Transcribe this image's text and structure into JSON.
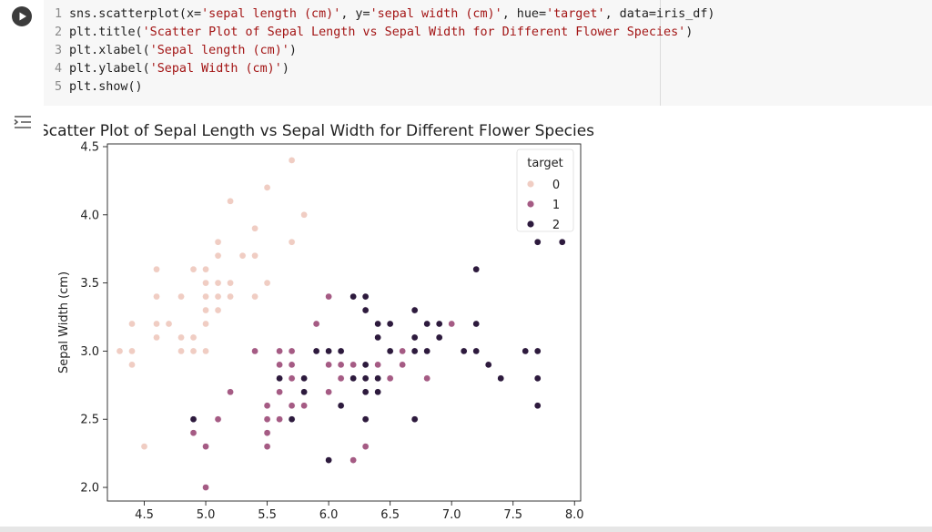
{
  "code_cell": {
    "lines": [
      {
        "num": "1",
        "parts": [
          {
            "t": "sns.scatterplot(x=",
            "c": "fn"
          },
          {
            "t": "'sepal length (cm)'",
            "c": "str"
          },
          {
            "t": ", y=",
            "c": "fn"
          },
          {
            "t": "'sepal width (cm)'",
            "c": "str"
          },
          {
            "t": ", hue=",
            "c": "fn"
          },
          {
            "t": "'target'",
            "c": "str"
          },
          {
            "t": ", data=iris_df)",
            "c": "fn"
          }
        ]
      },
      {
        "num": "2",
        "parts": [
          {
            "t": "plt.title(",
            "c": "fn"
          },
          {
            "t": "'Scatter Plot of Sepal Length vs Sepal Width for Different Flower Species'",
            "c": "str"
          },
          {
            "t": ")",
            "c": "fn"
          }
        ]
      },
      {
        "num": "3",
        "parts": [
          {
            "t": "plt.xlabel(",
            "c": "fn"
          },
          {
            "t": "'Sepal length (cm)'",
            "c": "str"
          },
          {
            "t": ")",
            "c": "fn"
          }
        ]
      },
      {
        "num": "4",
        "parts": [
          {
            "t": "plt.ylabel(",
            "c": "fn"
          },
          {
            "t": "'Sepal Width (cm)'",
            "c": "str"
          },
          {
            "t": ")",
            "c": "fn"
          }
        ]
      },
      {
        "num": "5",
        "parts": [
          {
            "t": "plt.show()",
            "c": "fn"
          }
        ]
      }
    ]
  },
  "icons": {
    "run": "play-icon",
    "output": "output-toggle-icon"
  },
  "chart_data": {
    "type": "scatter",
    "title": "Scatter Plot of Sepal Length vs Sepal Width for Different Flower Species",
    "ylabel": "Sepal Width (cm)",
    "xlim": [
      4.2,
      8.05
    ],
    "ylim": [
      1.9,
      4.52
    ],
    "xticks": [
      "4.5",
      "5.0",
      "5.5",
      "6.0",
      "6.5",
      "7.0",
      "7.5",
      "8.0"
    ],
    "yticks": [
      "2.0",
      "2.5",
      "3.0",
      "3.5",
      "4.0",
      "4.5"
    ],
    "legend": {
      "title": "target",
      "placement": "upper-right",
      "entries": [
        "0",
        "1",
        "2"
      ]
    },
    "colors": {
      "0": "#f0cdc3",
      "1": "#a55b84",
      "2": "#2d1a3d"
    },
    "series": [
      {
        "name": "0",
        "x": [
          5.1,
          4.9,
          4.7,
          4.6,
          5.0,
          5.4,
          4.6,
          5.0,
          4.4,
          4.9,
          5.4,
          4.8,
          4.8,
          4.3,
          5.8,
          5.7,
          5.4,
          5.1,
          5.7,
          5.1,
          5.4,
          5.1,
          4.6,
          5.1,
          4.8,
          5.0,
          5.0,
          5.2,
          5.2,
          4.7,
          4.8,
          5.4,
          5.2,
          5.5,
          4.9,
          5.0,
          5.5,
          4.9,
          4.4,
          5.1,
          5.0,
          4.5,
          4.4,
          5.0,
          5.1,
          4.8,
          5.1,
          4.6,
          5.3,
          5.0
        ],
        "y": [
          3.5,
          3.0,
          3.2,
          3.1,
          3.6,
          3.9,
          3.4,
          3.4,
          2.9,
          3.1,
          3.7,
          3.4,
          3.0,
          3.0,
          4.0,
          4.4,
          3.9,
          3.5,
          3.8,
          3.8,
          3.4,
          3.7,
          3.6,
          3.3,
          3.4,
          3.0,
          3.4,
          3.5,
          3.4,
          3.2,
          3.1,
          3.4,
          4.1,
          4.2,
          3.1,
          3.2,
          3.5,
          3.6,
          3.0,
          3.4,
          3.5,
          2.3,
          3.2,
          3.5,
          3.8,
          3.0,
          3.8,
          3.2,
          3.7,
          3.3
        ]
      },
      {
        "name": "1",
        "x": [
          7.0,
          6.4,
          6.9,
          5.5,
          6.5,
          5.7,
          6.3,
          4.9,
          6.6,
          5.2,
          5.0,
          5.9,
          6.0,
          6.1,
          5.6,
          6.7,
          5.6,
          5.8,
          6.2,
          5.6,
          5.9,
          6.1,
          6.3,
          6.1,
          6.4,
          6.6,
          6.8,
          6.7,
          6.0,
          5.7,
          5.5,
          5.5,
          5.8,
          6.0,
          5.4,
          6.0,
          6.7,
          6.3,
          5.6,
          5.5,
          5.5,
          6.1,
          5.8,
          5.0,
          5.6,
          5.7,
          5.7,
          6.2,
          5.1,
          5.7
        ],
        "y": [
          3.2,
          3.2,
          3.1,
          2.3,
          2.8,
          2.8,
          3.3,
          2.4,
          2.9,
          2.7,
          2.0,
          3.0,
          2.2,
          2.9,
          2.9,
          3.1,
          3.0,
          2.7,
          2.2,
          2.5,
          3.2,
          2.8,
          2.5,
          2.8,
          2.9,
          3.0,
          2.8,
          3.0,
          2.9,
          2.6,
          2.4,
          2.4,
          2.7,
          2.7,
          3.0,
          3.4,
          3.1,
          2.3,
          3.0,
          2.5,
          2.6,
          3.0,
          2.6,
          2.3,
          2.7,
          3.0,
          2.9,
          2.9,
          2.5,
          2.8
        ]
      },
      {
        "name": "2",
        "x": [
          6.3,
          5.8,
          7.1,
          6.3,
          6.5,
          7.6,
          4.9,
          7.3,
          6.7,
          7.2,
          6.5,
          6.4,
          6.8,
          5.7,
          5.8,
          6.4,
          6.5,
          7.7,
          7.7,
          6.0,
          6.9,
          5.6,
          7.7,
          6.3,
          6.7,
          7.2,
          6.2,
          6.1,
          6.4,
          7.2,
          7.4,
          7.9,
          6.4,
          6.3,
          6.1,
          7.7,
          6.3,
          6.4,
          6.0,
          6.9,
          6.7,
          6.9,
          5.8,
          6.8,
          6.7,
          6.7,
          6.3,
          6.5,
          6.2,
          5.9
        ],
        "y": [
          3.3,
          2.7,
          3.0,
          2.9,
          3.0,
          3.0,
          2.5,
          2.9,
          2.5,
          3.6,
          3.2,
          2.7,
          3.0,
          2.5,
          2.8,
          3.2,
          3.0,
          3.8,
          2.6,
          2.2,
          3.2,
          2.8,
          2.8,
          2.7,
          3.3,
          3.2,
          2.8,
          3.0,
          2.8,
          3.0,
          2.8,
          3.8,
          2.8,
          2.8,
          2.6,
          3.0,
          3.4,
          3.1,
          3.0,
          3.1,
          3.1,
          3.1,
          2.7,
          3.2,
          3.3,
          3.0,
          2.5,
          3.0,
          3.4,
          3.0
        ]
      }
    ]
  }
}
